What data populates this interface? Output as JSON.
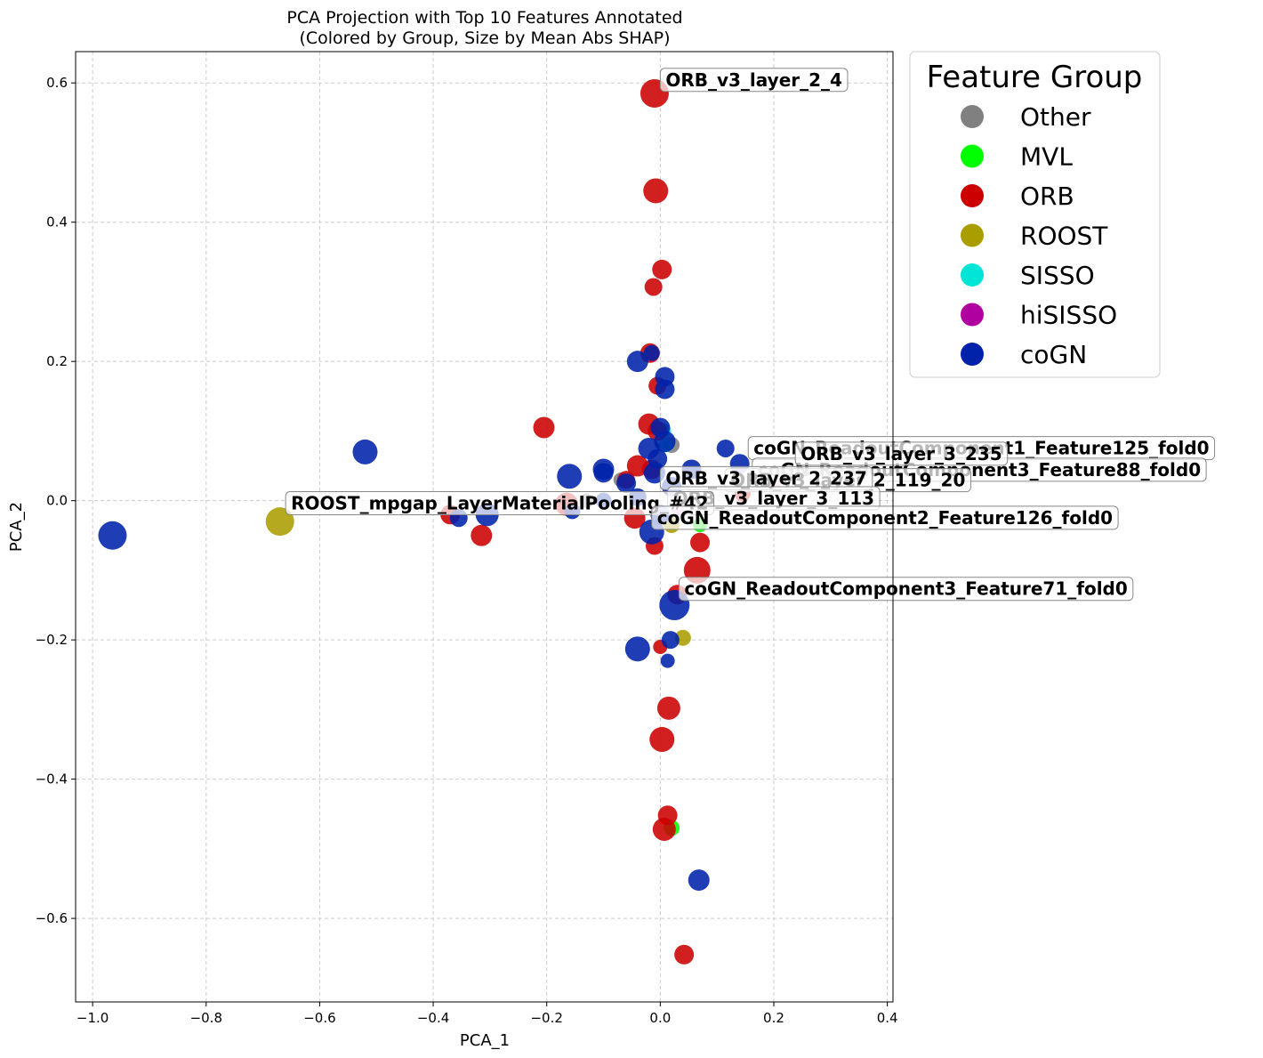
{
  "chart_data": {
    "type": "scatter",
    "title": "PCA Projection with Top 10 Features Annotated",
    "subtitle": "(Colored by Group, Size by Mean Abs SHAP)",
    "xlabel": "PCA_1",
    "ylabel": "PCA_2",
    "xlim": [
      -1.03,
      0.41
    ],
    "ylim": [
      -0.72,
      0.645
    ],
    "xticks": [
      -1.0,
      -0.8,
      -0.6,
      -0.4,
      -0.2,
      0.0,
      0.2,
      0.4
    ],
    "yticks": [
      -0.6,
      -0.4,
      -0.2,
      0.0,
      0.2,
      0.4,
      0.6
    ],
    "xtick_labels": [
      "−1.0",
      "−0.8",
      "−0.6",
      "−0.4",
      "−0.2",
      "0.0",
      "0.2",
      "0.4"
    ],
    "ytick_labels": [
      "−0.6",
      "−0.4",
      "−0.2",
      "0.0",
      "0.2",
      "0.4",
      "0.6"
    ],
    "grid": true,
    "legend": {
      "title": "Feature Group",
      "placement": "outside-right-top",
      "entries": [
        {
          "name": "Other",
          "color": "#808080"
        },
        {
          "name": "MVL",
          "color": "#00ff00"
        },
        {
          "name": "ORB",
          "color": "#cc0000"
        },
        {
          "name": "ROOST",
          "color": "#aa9d00"
        },
        {
          "name": "SISSO",
          "color": "#00e5d6"
        },
        {
          "name": "hiSISSO",
          "color": "#b000a0"
        },
        {
          "name": "coGN",
          "color": "#0022aa"
        }
      ]
    },
    "series": [
      {
        "name": "Other",
        "color": "#808080",
        "points": [
          {
            "x": 0.02,
            "y": 0.08,
            "size": 9
          },
          {
            "x": -0.13,
            "y": 0.0,
            "size": 8
          },
          {
            "x": -0.07,
            "y": 0.03,
            "size": 8
          }
        ]
      },
      {
        "name": "MVL",
        "color": "#00ff00",
        "points": [
          {
            "x": 0.02,
            "y": -0.47,
            "size": 9
          },
          {
            "x": 0.07,
            "y": -0.035,
            "size": 8
          }
        ]
      },
      {
        "name": "SISSO",
        "color": "#00e5d6",
        "points": [
          {
            "x": 0.005,
            "y": 0.1,
            "size": 9
          },
          {
            "x": 0.01,
            "y": 0.08,
            "size": 8
          }
        ]
      },
      {
        "name": "hiSISSO",
        "color": "#b000a0",
        "points": [
          {
            "x": 0.03,
            "y": -0.01,
            "size": 8
          }
        ]
      },
      {
        "name": "ROOST",
        "color": "#aa9d00",
        "points": [
          {
            "x": -0.67,
            "y": -0.03,
            "size": 16
          },
          {
            "x": 0.04,
            "y": -0.197,
            "size": 9
          },
          {
            "x": 0.02,
            "y": -0.035,
            "size": 9
          }
        ]
      },
      {
        "name": "ORB",
        "color": "#cc0000",
        "points": [
          {
            "x": -0.01,
            "y": 0.585,
            "size": 16
          },
          {
            "x": -0.008,
            "y": 0.445,
            "size": 14
          },
          {
            "x": 0.003,
            "y": 0.332,
            "size": 11
          },
          {
            "x": -0.012,
            "y": 0.307,
            "size": 10
          },
          {
            "x": -0.018,
            "y": 0.212,
            "size": 11
          },
          {
            "x": -0.005,
            "y": 0.165,
            "size": 10
          },
          {
            "x": -0.02,
            "y": 0.11,
            "size": 12
          },
          {
            "x": -0.005,
            "y": 0.1,
            "size": 11
          },
          {
            "x": -0.205,
            "y": 0.105,
            "size": 12
          },
          {
            "x": -0.04,
            "y": 0.05,
            "size": 12
          },
          {
            "x": -0.015,
            "y": 0.045,
            "size": 11
          },
          {
            "x": -0.06,
            "y": 0.03,
            "size": 10
          },
          {
            "x": -0.165,
            "y": -0.005,
            "size": 13
          },
          {
            "x": -0.37,
            "y": -0.02,
            "size": 11
          },
          {
            "x": -0.315,
            "y": -0.05,
            "size": 12
          },
          {
            "x": -0.045,
            "y": -0.025,
            "size": 12
          },
          {
            "x": -0.01,
            "y": -0.065,
            "size": 10
          },
          {
            "x": 0.07,
            "y": -0.06,
            "size": 11
          },
          {
            "x": 0.065,
            "y": -0.1,
            "size": 15
          },
          {
            "x": 0.03,
            "y": -0.135,
            "size": 11
          },
          {
            "x": 0.0,
            "y": -0.21,
            "size": 8
          },
          {
            "x": 0.015,
            "y": -0.298,
            "size": 13
          },
          {
            "x": 0.003,
            "y": -0.343,
            "size": 14
          },
          {
            "x": 0.013,
            "y": -0.452,
            "size": 11
          },
          {
            "x": 0.007,
            "y": -0.472,
            "size": 13
          },
          {
            "x": 0.042,
            "y": -0.652,
            "size": 11
          },
          {
            "x": 0.2,
            "y": 0.03,
            "size": 10
          },
          {
            "x": 0.145,
            "y": 0.01,
            "size": 9
          }
        ]
      },
      {
        "name": "coGN",
        "color": "#0022aa",
        "points": [
          {
            "x": -0.965,
            "y": -0.05,
            "size": 16
          },
          {
            "x": -0.52,
            "y": 0.07,
            "size": 14
          },
          {
            "x": -0.355,
            "y": -0.025,
            "size": 10
          },
          {
            "x": -0.305,
            "y": -0.02,
            "size": 13
          },
          {
            "x": -0.16,
            "y": 0.035,
            "size": 14
          },
          {
            "x": -0.1,
            "y": 0.045,
            "size": 12
          },
          {
            "x": -0.1,
            "y": 0.04,
            "size": 11
          },
          {
            "x": -0.06,
            "y": 0.025,
            "size": 11
          },
          {
            "x": -0.04,
            "y": 0.2,
            "size": 12
          },
          {
            "x": -0.015,
            "y": 0.212,
            "size": 9
          },
          {
            "x": 0.008,
            "y": 0.178,
            "size": 11
          },
          {
            "x": 0.008,
            "y": 0.16,
            "size": 11
          },
          {
            "x": 0.0,
            "y": 0.105,
            "size": 11
          },
          {
            "x": 0.008,
            "y": 0.085,
            "size": 12
          },
          {
            "x": -0.02,
            "y": 0.075,
            "size": 12
          },
          {
            "x": -0.005,
            "y": 0.06,
            "size": 11
          },
          {
            "x": -0.01,
            "y": 0.04,
            "size": 12
          },
          {
            "x": 0.055,
            "y": 0.045,
            "size": 11
          },
          {
            "x": 0.115,
            "y": 0.075,
            "size": 10
          },
          {
            "x": 0.14,
            "y": 0.053,
            "size": 11
          },
          {
            "x": 0.02,
            "y": 0.02,
            "size": 11
          },
          {
            "x": -0.04,
            "y": 0.005,
            "size": 10
          },
          {
            "x": 0.0,
            "y": -0.02,
            "size": 11
          },
          {
            "x": -0.015,
            "y": -0.045,
            "size": 14
          },
          {
            "x": 0.025,
            "y": -0.15,
            "size": 17
          },
          {
            "x": 0.018,
            "y": -0.2,
            "size": 10
          },
          {
            "x": 0.013,
            "y": -0.23,
            "size": 8
          },
          {
            "x": -0.04,
            "y": -0.213,
            "size": 14
          },
          {
            "x": 0.068,
            "y": -0.545,
            "size": 12
          },
          {
            "x": -0.1,
            "y": 0.0,
            "size": 9
          },
          {
            "x": -0.155,
            "y": -0.015,
            "size": 9
          }
        ]
      }
    ],
    "annotations": [
      {
        "text": "ORB_v3_layer_2_4",
        "x": 0.0,
        "y": 0.598
      },
      {
        "text": "coGN_ReadoutComponent1_Feature125_fold0",
        "x": 0.155,
        "y": 0.069
      },
      {
        "text": "coGN_ReadoutComponent3_Feature88_fold0",
        "x": 0.162,
        "y": 0.038
      },
      {
        "text": "ORB_v3_layer_3_235",
        "x": 0.238,
        "y": 0.061
      },
      {
        "text": "ORB_v3_layer_2_119_20",
        "x": 0.114,
        "y": 0.023
      },
      {
        "text": "ORB_v3_layer_2_237",
        "x": 0.0,
        "y": 0.026
      },
      {
        "text": "ORB_v3_layer_3_113",
        "x": 0.013,
        "y": -0.003
      },
      {
        "text": "ROOST_mpgap_LayerMaterialPooling_#42",
        "x": -0.66,
        "y": -0.01
      },
      {
        "text": "coGN_ReadoutComponent2_Feature126_fold0",
        "x": -0.015,
        "y": -0.031
      },
      {
        "text": "coGN_ReadoutComponent3_Feature71_fold0",
        "x": 0.033,
        "y": -0.133
      }
    ]
  }
}
